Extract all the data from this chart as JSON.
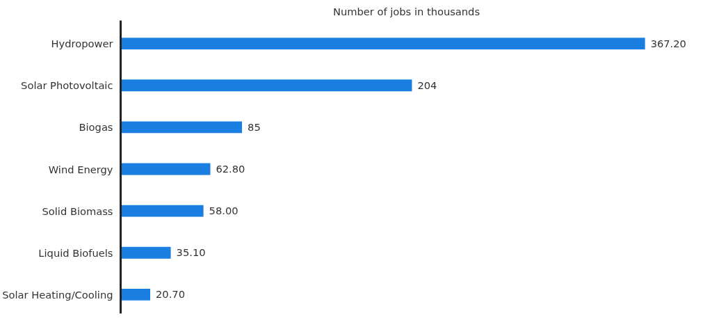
{
  "chart_data": {
    "type": "bar",
    "orientation": "horizontal",
    "title": "Number of jobs in thousands",
    "categories": [
      "Hydropower",
      "Solar Photovoltaic",
      "Biogas",
      "Wind Energy",
      "Solid Biomass",
      "Liquid Biofuels",
      "Solar Heating/Cooling"
    ],
    "values": [
      367.2,
      204,
      85,
      62.8,
      58.0,
      35.1,
      20.7
    ],
    "value_labels": [
      "367.20",
      "204",
      "85",
      "62.80",
      "58.00",
      "35.10",
      "20.70"
    ],
    "color": "#1a7fe0"
  }
}
